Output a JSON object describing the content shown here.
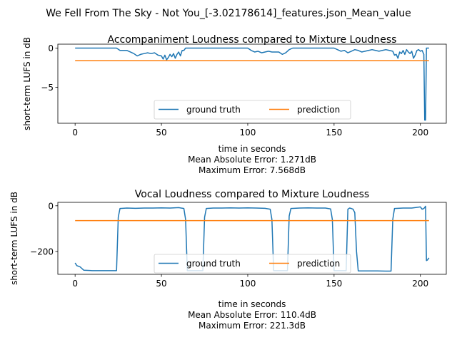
{
  "figure": {
    "suptitle": "We Fell From The Sky - Not You_[-3.02178614]_features.json_Mean_value"
  },
  "chart_data": [
    {
      "type": "line",
      "title": "Accompaniment Loudness compared to Mixture Loudness",
      "xlabel": "time in seconds",
      "ylabel": "short-term LUFS in dB",
      "xlim": [
        -10,
        215
      ],
      "ylim": [
        -9.6,
        0.5
      ],
      "xticks": [
        0,
        50,
        100,
        150,
        200
      ],
      "xtick_labels": [
        "0",
        "50",
        "100",
        "150",
        "200"
      ],
      "yticks": [
        0,
        -5
      ],
      "ytick_labels": [
        "0",
        "−5"
      ],
      "grid": false,
      "legend_position": "lower center",
      "notes": [
        "Mean Absolute Error: 1.271dB",
        "Maximum Error: 7.568dB"
      ],
      "series": [
        {
          "name": "ground truth",
          "color": "#1f77b4",
          "x": [
            0,
            5,
            10,
            15,
            20,
            24,
            26,
            28,
            30,
            32,
            34,
            36,
            38,
            40,
            42,
            44,
            46,
            48,
            50,
            51,
            52,
            53,
            54,
            55,
            56,
            57,
            58,
            59,
            60,
            61,
            62,
            63,
            64,
            65,
            67,
            70,
            75,
            80,
            85,
            90,
            95,
            98,
            100,
            102,
            104,
            106,
            108,
            110,
            112,
            114,
            116,
            118,
            120,
            122,
            124,
            126,
            130,
            135,
            140,
            145,
            150,
            152,
            154,
            156,
            158,
            160,
            162,
            164,
            166,
            168,
            170,
            172,
            174,
            176,
            178,
            180,
            182,
            184,
            185,
            186,
            187,
            188,
            189,
            190,
            191,
            192,
            193,
            194,
            195,
            196,
            197,
            198,
            199,
            200,
            201,
            202,
            202.5,
            203,
            203.5,
            204,
            205
          ],
          "y": [
            0,
            0,
            0,
            0,
            0,
            0,
            -0.3,
            -0.3,
            -0.3,
            -0.5,
            -0.7,
            -1.0,
            -0.8,
            -0.7,
            -0.6,
            -0.7,
            -0.6,
            -0.9,
            -1.0,
            -1.4,
            -0.9,
            -1.5,
            -1.2,
            -0.8,
            -1.1,
            -0.7,
            -1.3,
            -0.8,
            -0.5,
            -1.0,
            -0.3,
            -0.3,
            0,
            0,
            0,
            0,
            0,
            0,
            0,
            0,
            0,
            0,
            0,
            -0.3,
            -0.5,
            -0.4,
            -0.6,
            -0.5,
            -0.4,
            -0.5,
            -0.5,
            -0.5,
            -0.8,
            -0.6,
            -0.2,
            0,
            0,
            0,
            0,
            0,
            0,
            -0.2,
            -0.4,
            -0.3,
            -0.6,
            -0.4,
            -0.2,
            -0.3,
            -0.5,
            -0.4,
            -0.3,
            -0.2,
            -0.3,
            -0.4,
            -0.3,
            -0.2,
            -0.3,
            -0.4,
            -0.9,
            -0.8,
            -1.3,
            -0.5,
            -0.7,
            -0.3,
            -0.8,
            -0.2,
            -0.5,
            -0.7,
            -0.4,
            -1.3,
            -0.9,
            -0.3,
            -0.2,
            -0.4,
            -0.3,
            -0.8,
            -9.2,
            -9.2,
            0,
            0,
            0
          ]
        },
        {
          "name": "prediction",
          "color": "#ff7f0e",
          "x": [
            0,
            205
          ],
          "y": [
            -1.6,
            -1.6
          ]
        }
      ]
    },
    {
      "type": "line",
      "title": "Vocal Loudness compared to Mixture Loudness",
      "xlabel": "time in seconds",
      "ylabel": "short-term LUFS in dB",
      "xlim": [
        -10,
        215
      ],
      "ylim": [
        -300,
        15
      ],
      "xticks": [
        0,
        50,
        100,
        150,
        200
      ],
      "xtick_labels": [
        "0",
        "50",
        "100",
        "150",
        "200"
      ],
      "yticks": [
        0,
        -200
      ],
      "ytick_labels": [
        "0",
        "−200"
      ],
      "grid": false,
      "legend_position": "lower center",
      "notes": [
        "Mean Absolute Error: 110.4dB",
        "Maximum Error: 221.3dB"
      ],
      "series": [
        {
          "name": "ground truth",
          "color": "#1f77b4",
          "x": [
            0,
            1,
            3,
            5,
            10,
            15,
            20,
            24,
            25,
            26,
            30,
            35,
            40,
            45,
            50,
            55,
            60,
            63,
            64,
            65,
            66,
            70,
            74,
            75,
            76,
            80,
            85,
            90,
            95,
            100,
            105,
            110,
            113,
            114,
            115,
            120,
            123,
            124,
            125,
            130,
            135,
            140,
            145,
            148,
            149,
            150,
            155,
            157,
            158,
            159,
            160,
            161,
            162,
            163,
            164,
            170,
            175,
            180,
            183,
            184,
            185,
            190,
            195,
            200,
            201,
            202,
            203,
            203.5,
            204,
            205
          ],
          "y": [
            -250,
            -262,
            -268,
            -282,
            -284,
            -284,
            -284,
            -284,
            -50,
            -12,
            -10,
            -11,
            -10,
            -10,
            -9,
            -10,
            -8,
            -12,
            -60,
            -284,
            -284,
            -284,
            -284,
            -50,
            -12,
            -10,
            -10,
            -9,
            -10,
            -9,
            -10,
            -11,
            -15,
            -60,
            -284,
            -284,
            -284,
            -45,
            -12,
            -10,
            -9,
            -10,
            -10,
            -14,
            -60,
            -284,
            -284,
            -284,
            -15,
            -10,
            -12,
            -15,
            -30,
            -200,
            -285,
            -285,
            -285,
            -286,
            -286,
            -60,
            -12,
            -10,
            -10,
            -5,
            -15,
            -12,
            -2,
            -240,
            -238,
            -228
          ]
        },
        {
          "name": "prediction",
          "color": "#ff7f0e",
          "x": [
            0,
            205
          ],
          "y": [
            -65,
            -65
          ]
        }
      ]
    }
  ]
}
